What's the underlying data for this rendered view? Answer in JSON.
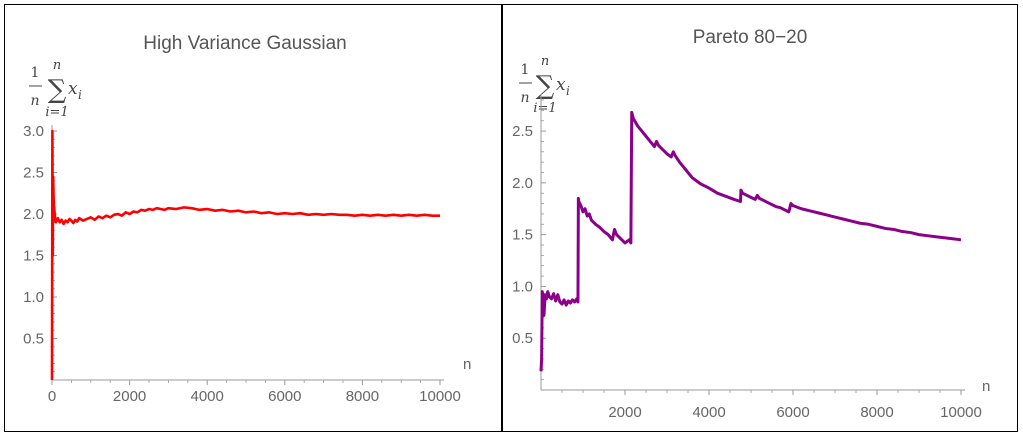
{
  "chart_data": [
    {
      "type": "line",
      "title": "High Variance Gaussian",
      "xlabel": "n",
      "ylabel": {
        "numerator": "1",
        "denominator": "n",
        "sum_upper": "n",
        "sum_lower": "i=1",
        "term": "x",
        "subscript": "i"
      },
      "xlim": [
        0,
        10000
      ],
      "ylim": [
        0,
        3.0
      ],
      "xticks": [
        "0",
        "2000",
        "4000",
        "6000",
        "8000",
        "10000"
      ],
      "yticks": [
        "0.5",
        "1.0",
        "1.5",
        "2.0",
        "2.5",
        "3.0"
      ],
      "grid": false,
      "legend": "none",
      "series": [
        {
          "color": "#ff0000",
          "x": [
            0,
            10,
            20,
            30,
            40,
            50,
            60,
            80,
            100,
            150,
            200,
            250,
            300,
            350,
            400,
            450,
            500,
            550,
            600,
            650,
            700,
            800,
            900,
            1000,
            1100,
            1200,
            1300,
            1400,
            1500,
            1600,
            1700,
            1800,
            1900,
            2000,
            2100,
            2200,
            2300,
            2400,
            2500,
            2600,
            2700,
            2800,
            2900,
            3000,
            3200,
            3400,
            3600,
            3800,
            4000,
            4200,
            4400,
            4600,
            4800,
            5000,
            5200,
            5400,
            5600,
            5800,
            6000,
            6200,
            6400,
            6600,
            6800,
            7000,
            7200,
            7400,
            7600,
            7800,
            8000,
            8200,
            8400,
            8600,
            8800,
            9000,
            9200,
            9400,
            9600,
            9800,
            10000
          ],
          "y": [
            0.0,
            3.0,
            1.5,
            2.45,
            2.2,
            2.1,
            2.05,
            1.95,
            1.9,
            1.95,
            1.9,
            1.93,
            1.88,
            1.92,
            1.9,
            1.94,
            1.92,
            1.89,
            1.93,
            1.91,
            1.95,
            1.92,
            1.94,
            1.96,
            1.93,
            1.97,
            1.95,
            1.98,
            1.96,
            1.99,
            2.0,
            1.98,
            2.02,
            2.0,
            2.03,
            2.02,
            2.05,
            2.04,
            2.06,
            2.05,
            2.07,
            2.06,
            2.05,
            2.07,
            2.06,
            2.08,
            2.07,
            2.05,
            2.06,
            2.04,
            2.05,
            2.03,
            2.04,
            2.02,
            2.03,
            2.01,
            2.02,
            2.0,
            2.01,
            2.0,
            2.01,
            1.99,
            2.0,
            1.99,
            2.0,
            1.99,
            1.99,
            1.98,
            1.99,
            1.98,
            1.99,
            1.98,
            1.99,
            1.98,
            1.99,
            1.98,
            1.99,
            1.98,
            1.98
          ]
        }
      ]
    },
    {
      "type": "line",
      "title": "Pareto 80−20",
      "xlabel": "n",
      "ylabel": {
        "numerator": "1",
        "denominator": "n",
        "sum_upper": "n",
        "sum_lower": "i=1",
        "term": "x",
        "subscript": "i"
      },
      "xlim": [
        0,
        10000
      ],
      "ylim": [
        0,
        2.8
      ],
      "xticks": [
        "2000",
        "4000",
        "6000",
        "8000",
        "10000"
      ],
      "yticks": [
        "0.5",
        "1.0",
        "1.5",
        "2.0",
        "2.5"
      ],
      "grid": false,
      "legend": "none",
      "series": [
        {
          "color": "#8b008b",
          "x": [
            0,
            15,
            30,
            50,
            70,
            100,
            130,
            160,
            200,
            250,
            300,
            350,
            400,
            450,
            500,
            550,
            600,
            650,
            700,
            750,
            800,
            850,
            880,
            890,
            900,
            950,
            1000,
            1050,
            1100,
            1150,
            1200,
            1300,
            1400,
            1500,
            1600,
            1700,
            1750,
            1800,
            1900,
            2000,
            2100,
            2140,
            2160,
            2200,
            2300,
            2400,
            2500,
            2600,
            2700,
            2750,
            2800,
            2900,
            3000,
            3100,
            3150,
            3200,
            3300,
            3400,
            3500,
            3600,
            3800,
            4000,
            4200,
            4400,
            4600,
            4750,
            4760,
            4800,
            4900,
            5000,
            5100,
            5150,
            5200,
            5300,
            5400,
            5500,
            5600,
            5700,
            5800,
            5900,
            5950,
            6000,
            6200,
            6400,
            6600,
            6800,
            7000,
            7200,
            7400,
            7600,
            7800,
            8000,
            8200,
            8400,
            8600,
            8800,
            9000,
            9200,
            9400,
            9600,
            9800,
            10000
          ],
          "y": [
            0.18,
            0.3,
            0.95,
            0.9,
            0.72,
            0.92,
            0.88,
            0.95,
            0.9,
            0.88,
            0.93,
            0.86,
            0.92,
            0.85,
            0.83,
            0.87,
            0.82,
            0.86,
            0.84,
            0.87,
            0.85,
            0.88,
            0.85,
            1.85,
            1.82,
            1.78,
            1.72,
            1.75,
            1.68,
            1.7,
            1.64,
            1.6,
            1.57,
            1.53,
            1.5,
            1.45,
            1.55,
            1.5,
            1.46,
            1.42,
            1.45,
            1.42,
            2.68,
            2.62,
            2.55,
            2.5,
            2.45,
            2.4,
            2.35,
            2.4,
            2.36,
            2.32,
            2.28,
            2.25,
            2.3,
            2.26,
            2.2,
            2.15,
            2.1,
            2.05,
            1.99,
            1.95,
            1.9,
            1.87,
            1.84,
            1.82,
            1.93,
            1.9,
            1.88,
            1.86,
            1.84,
            1.88,
            1.85,
            1.83,
            1.81,
            1.79,
            1.77,
            1.76,
            1.74,
            1.72,
            1.8,
            1.78,
            1.75,
            1.73,
            1.71,
            1.69,
            1.67,
            1.65,
            1.63,
            1.61,
            1.6,
            1.58,
            1.56,
            1.55,
            1.53,
            1.52,
            1.5,
            1.49,
            1.48,
            1.47,
            1.46,
            1.45
          ]
        }
      ]
    }
  ]
}
